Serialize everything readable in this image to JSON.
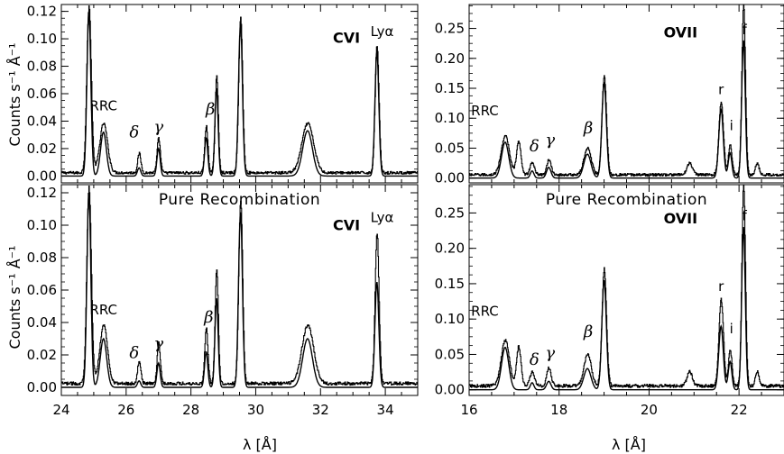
{
  "axis_labels": {
    "y": "Counts s⁻¹ Å⁻¹",
    "x": "λ [Å]"
  },
  "chart_data": [
    {
      "type": "line",
      "id": "cvi-top",
      "xlim": [
        24,
        35
      ],
      "ylim": [
        -0.005,
        0.125
      ],
      "xticks": [
        24,
        26,
        28,
        30,
        32,
        34
      ],
      "yticks": [
        0.0,
        0.02,
        0.04,
        0.06,
        0.08,
        0.1,
        0.12
      ],
      "ytick_labels": [
        "0.00",
        "0.02",
        "0.04",
        "0.06",
        "0.08",
        "0.10",
        "0.12"
      ],
      "show_xtick_labels": false,
      "annotations": [
        {
          "text": "RRC",
          "x": 25.3,
          "y": 0.048,
          "style": "plain"
        },
        {
          "text": "δ",
          "x": 26.25,
          "y": 0.028,
          "style": "greek"
        },
        {
          "text": "γ",
          "x": 27.0,
          "y": 0.032,
          "style": "greek"
        },
        {
          "text": "β",
          "x": 28.6,
          "y": 0.045,
          "style": "greek"
        },
        {
          "text": "CVI",
          "x": 32.8,
          "y": 0.097,
          "style": "bold"
        },
        {
          "text": "Lyα",
          "x": 33.9,
          "y": 0.102,
          "style": "plain"
        }
      ],
      "observed_peaks": [
        [
          24.85,
          0.121,
          0.07
        ],
        [
          25.3,
          0.036,
          0.12
        ],
        [
          26.4,
          0.014,
          0.05
        ],
        [
          27.0,
          0.025,
          0.05
        ],
        [
          28.47,
          0.034,
          0.05
        ],
        [
          28.79,
          0.07,
          0.05
        ],
        [
          29.53,
          0.113,
          0.06
        ],
        [
          31.6,
          0.036,
          0.18
        ],
        [
          33.74,
          0.093,
          0.06
        ]
      ],
      "model_peaks": [
        [
          24.85,
          0.12,
          0.06
        ],
        [
          25.3,
          0.032,
          0.09
        ],
        [
          26.4,
          0.006,
          0.05
        ],
        [
          27.0,
          0.02,
          0.05
        ],
        [
          28.47,
          0.028,
          0.05
        ],
        [
          28.79,
          0.064,
          0.05
        ],
        [
          29.53,
          0.111,
          0.06
        ],
        [
          31.6,
          0.033,
          0.15
        ],
        [
          33.74,
          0.091,
          0.06
        ]
      ]
    },
    {
      "type": "line",
      "id": "ovii-top",
      "xlim": [
        16,
        23
      ],
      "ylim": [
        -0.008,
        0.29
      ],
      "xticks": [
        16,
        18,
        20,
        22
      ],
      "yticks": [
        0.0,
        0.05,
        0.1,
        0.15,
        0.2,
        0.25
      ],
      "ytick_labels": [
        "0.00",
        "0.05",
        "0.10",
        "0.15",
        "0.20",
        "0.25"
      ],
      "show_xtick_labels": false,
      "annotations": [
        {
          "text": "RRC",
          "x": 16.35,
          "y": 0.105,
          "style": "plain"
        },
        {
          "text": "δ",
          "x": 17.45,
          "y": 0.045,
          "style": "greek"
        },
        {
          "text": "γ",
          "x": 17.8,
          "y": 0.055,
          "style": "greek"
        },
        {
          "text": "β",
          "x": 18.65,
          "y": 0.075,
          "style": "greek"
        },
        {
          "text": "OVII",
          "x": 20.7,
          "y": 0.235,
          "style": "bold"
        },
        {
          "text": "r",
          "x": 21.6,
          "y": 0.14,
          "style": "plain"
        },
        {
          "text": "i",
          "x": 21.83,
          "y": 0.08,
          "style": "plain"
        },
        {
          "text": "f",
          "x": 22.12,
          "y": 0.24,
          "style": "plain"
        }
      ],
      "observed_peaks": [
        [
          16.8,
          0.065,
          0.09
        ],
        [
          17.1,
          0.055,
          0.05
        ],
        [
          17.4,
          0.02,
          0.05
        ],
        [
          17.77,
          0.025,
          0.05
        ],
        [
          18.63,
          0.045,
          0.08
        ],
        [
          19.0,
          0.165,
          0.05
        ],
        [
          20.9,
          0.02,
          0.06
        ],
        [
          21.6,
          0.122,
          0.05
        ],
        [
          21.8,
          0.05,
          0.04
        ],
        [
          22.1,
          0.285,
          0.04
        ],
        [
          22.4,
          0.02,
          0.04
        ]
      ],
      "model_peaks": [
        [
          16.8,
          0.06,
          0.08
        ],
        [
          17.4,
          0.012,
          0.04
        ],
        [
          17.77,
          0.018,
          0.05
        ],
        [
          18.63,
          0.04,
          0.08
        ],
        [
          19.0,
          0.16,
          0.05
        ],
        [
          21.6,
          0.115,
          0.05
        ],
        [
          21.8,
          0.042,
          0.04
        ],
        [
          22.1,
          0.23,
          0.04
        ]
      ]
    },
    {
      "type": "line",
      "id": "cvi-bottom",
      "xlim": [
        24,
        35
      ],
      "ylim": [
        -0.005,
        0.125
      ],
      "xticks": [
        24,
        26,
        28,
        30,
        32,
        34
      ],
      "yticks": [
        0.0,
        0.02,
        0.04,
        0.06,
        0.08,
        0.1,
        0.12
      ],
      "ytick_labels": [
        "0.00",
        "0.02",
        "0.04",
        "0.06",
        "0.08",
        "0.10",
        "0.12"
      ],
      "xtick_labels": [
        "24",
        "26",
        "28",
        "30",
        "32",
        "34"
      ],
      "show_xtick_labels": true,
      "title": "Pure Recombination",
      "annotations": [
        {
          "text": "RRC",
          "x": 25.3,
          "y": 0.045,
          "style": "plain"
        },
        {
          "text": "δ",
          "x": 26.25,
          "y": 0.018,
          "style": "greek"
        },
        {
          "text": "γ",
          "x": 27.0,
          "y": 0.024,
          "style": "greek"
        },
        {
          "text": "β",
          "x": 28.55,
          "y": 0.04,
          "style": "greek"
        },
        {
          "text": "CVI",
          "x": 32.8,
          "y": 0.097,
          "style": "bold"
        },
        {
          "text": "Lyα",
          "x": 33.9,
          "y": 0.102,
          "style": "plain"
        }
      ],
      "observed_peaks": [
        [
          24.85,
          0.121,
          0.07
        ],
        [
          25.3,
          0.036,
          0.12
        ],
        [
          26.4,
          0.014,
          0.05
        ],
        [
          27.0,
          0.025,
          0.05
        ],
        [
          28.47,
          0.034,
          0.05
        ],
        [
          28.79,
          0.07,
          0.05
        ],
        [
          29.53,
          0.113,
          0.06
        ],
        [
          31.6,
          0.036,
          0.18
        ],
        [
          33.74,
          0.093,
          0.06
        ]
      ],
      "model_peaks": [
        [
          24.85,
          0.12,
          0.06
        ],
        [
          25.3,
          0.03,
          0.1
        ],
        [
          26.4,
          0.004,
          0.05
        ],
        [
          27.0,
          0.015,
          0.05
        ],
        [
          28.47,
          0.022,
          0.05
        ],
        [
          28.79,
          0.055,
          0.05
        ],
        [
          29.53,
          0.108,
          0.06
        ],
        [
          31.6,
          0.03,
          0.15
        ],
        [
          33.74,
          0.065,
          0.06
        ]
      ]
    },
    {
      "type": "line",
      "id": "ovii-bottom",
      "xlim": [
        16,
        23
      ],
      "ylim": [
        -0.008,
        0.29
      ],
      "xticks": [
        16,
        18,
        20,
        22
      ],
      "yticks": [
        0.0,
        0.05,
        0.1,
        0.15,
        0.2,
        0.25
      ],
      "ytick_labels": [
        "0.00",
        "0.05",
        "0.10",
        "0.15",
        "0.20",
        "0.25"
      ],
      "xtick_labels": [
        "16",
        "18",
        "20",
        "22"
      ],
      "show_xtick_labels": true,
      "title": "Pure Recombination",
      "annotations": [
        {
          "text": "RRC",
          "x": 16.35,
          "y": 0.105,
          "style": "plain"
        },
        {
          "text": "δ",
          "x": 17.45,
          "y": 0.035,
          "style": "greek"
        },
        {
          "text": "γ",
          "x": 17.8,
          "y": 0.045,
          "style": "greek"
        },
        {
          "text": "β",
          "x": 18.65,
          "y": 0.075,
          "style": "greek"
        },
        {
          "text": "OVII",
          "x": 20.7,
          "y": 0.235,
          "style": "bold"
        },
        {
          "text": "r",
          "x": 21.6,
          "y": 0.14,
          "style": "plain"
        },
        {
          "text": "i",
          "x": 21.83,
          "y": 0.08,
          "style": "plain"
        },
        {
          "text": "f",
          "x": 22.12,
          "y": 0.24,
          "style": "plain"
        }
      ],
      "observed_peaks": [
        [
          16.8,
          0.065,
          0.09
        ],
        [
          17.1,
          0.055,
          0.05
        ],
        [
          17.4,
          0.02,
          0.05
        ],
        [
          17.77,
          0.025,
          0.05
        ],
        [
          18.63,
          0.045,
          0.08
        ],
        [
          19.0,
          0.165,
          0.05
        ],
        [
          20.9,
          0.02,
          0.06
        ],
        [
          21.6,
          0.122,
          0.05
        ],
        [
          21.8,
          0.05,
          0.04
        ],
        [
          22.1,
          0.285,
          0.04
        ],
        [
          22.4,
          0.02,
          0.04
        ]
      ],
      "model_peaks": [
        [
          16.8,
          0.06,
          0.08
        ],
        [
          17.4,
          0.01,
          0.04
        ],
        [
          17.77,
          0.012,
          0.05
        ],
        [
          18.63,
          0.03,
          0.08
        ],
        [
          19.0,
          0.155,
          0.05
        ],
        [
          21.6,
          0.09,
          0.05
        ],
        [
          21.8,
          0.04,
          0.04
        ],
        [
          22.1,
          0.23,
          0.04
        ]
      ]
    }
  ]
}
